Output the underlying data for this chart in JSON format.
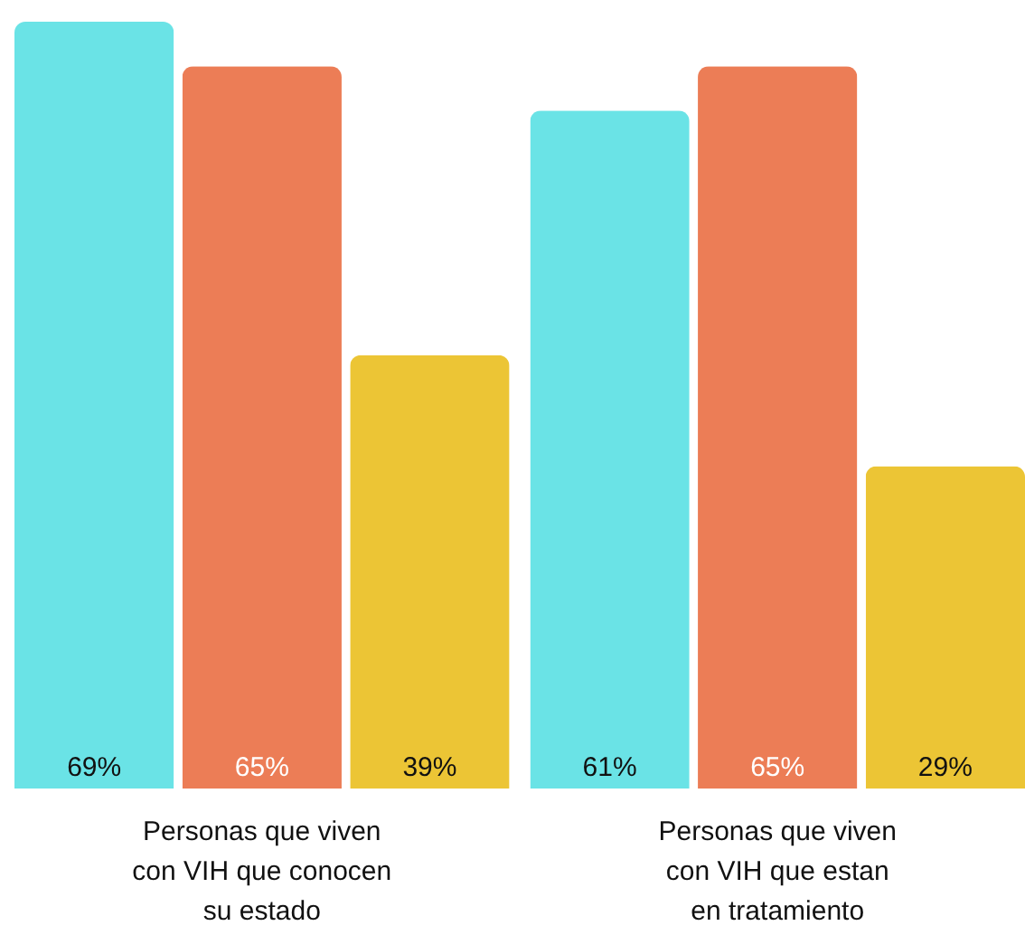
{
  "chart_data": {
    "type": "bar",
    "categories": [
      "Personas que viven con VIH que conocen su estado",
      "Personas que viven con VIH que estan en tratamiento"
    ],
    "series": [
      {
        "color": "#6ae3e6",
        "values": [
          69,
          61
        ],
        "value_labels": [
          "69%",
          "61%"
        ]
      },
      {
        "color": "#ec7d56",
        "values": [
          65,
          65
        ],
        "value_labels": [
          "65%",
          "65%"
        ]
      },
      {
        "color": "#ecc535",
        "values": [
          39,
          29
        ],
        "value_labels": [
          "39%",
          "29%"
        ]
      }
    ]
  }
}
